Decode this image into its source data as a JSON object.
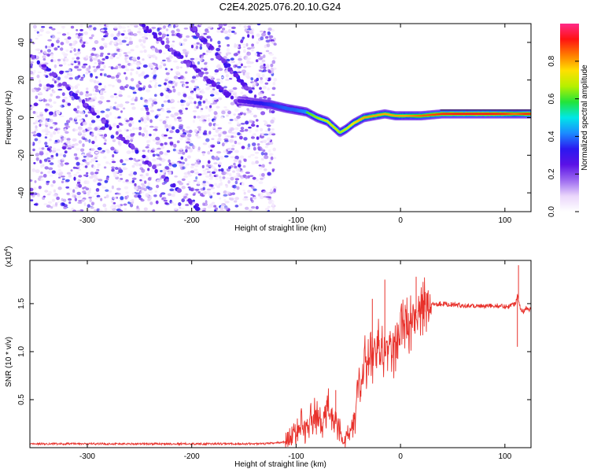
{
  "page": {
    "title": "C2E4.2025.076.20.10.G24"
  },
  "colors": {
    "axis": "#000000",
    "snr_line": "#e8312b",
    "colorbar_stops": [
      "#ffffff",
      "#ead6fb",
      "#9c6af0",
      "#5b12e6",
      "#2b18f0",
      "#1b8bff",
      "#00e7e7",
      "#22e43a",
      "#b6f000",
      "#ffe000",
      "#ff7c00",
      "#ff1212",
      "#ff2a88"
    ]
  },
  "chart_data": [
    {
      "id": "spectrogram",
      "type": "heatmap",
      "title": "",
      "xlabel": "Height of straight line (km)",
      "ylabel": "Frequency (Hz)",
      "xlim": [
        -355,
        125
      ],
      "ylim": [
        -50,
        50
      ],
      "xticks": [
        -300,
        -200,
        -100,
        0,
        100
      ],
      "yticks": [
        -40,
        -20,
        0,
        20,
        40
      ],
      "colorbar": {
        "label": "Normalized spectral amplitude",
        "range": [
          0,
          1
        ],
        "ticks": [
          0.0,
          0.2,
          0.4,
          0.6,
          0.8
        ],
        "colormap": "white-purple-blue-cyan-green-yellow-red"
      },
      "noise_region_x": [
        -355,
        -120
      ],
      "diagonal_tracks": [
        {
          "from": [
            -355,
            34
          ],
          "to": [
            -190,
            -50
          ]
        },
        {
          "from": [
            -250,
            50
          ],
          "to": [
            -150,
            5
          ]
        },
        {
          "from": [
            -200,
            48
          ],
          "to": [
            -140,
            12
          ]
        }
      ],
      "main_trace": {
        "x": [
          -155,
          -140,
          -125,
          -110,
          -100,
          -90,
          -80,
          -70,
          -62,
          -58,
          -52,
          -45,
          -35,
          -25,
          -15,
          -5,
          5,
          20,
          40,
          60,
          80,
          100,
          110,
          120,
          125
        ],
        "freq": [
          9,
          8,
          7,
          5,
          4,
          3,
          0,
          -2,
          -6,
          -8,
          -6,
          -3,
          0,
          1,
          2,
          1,
          1,
          1,
          2,
          2,
          2,
          2,
          2,
          2,
          2
        ],
        "amplitude": [
          0.35,
          0.45,
          0.5,
          0.55,
          0.55,
          0.6,
          0.65,
          0.7,
          0.7,
          0.65,
          0.7,
          0.75,
          0.8,
          0.8,
          0.8,
          0.8,
          0.8,
          0.85,
          0.9,
          0.92,
          0.92,
          0.9,
          0.85,
          0.9,
          0.9
        ]
      }
    },
    {
      "id": "snr",
      "type": "line",
      "title": "",
      "xlabel": "Height of straight line (km)",
      "ylabel": "SNR (10 * v/v)",
      "y_multiplier_label": "(x10",
      "y_multiplier_exp": "4",
      "xlim": [
        -355,
        125
      ],
      "ylim": [
        0,
        1.95
      ],
      "xticks": [
        -300,
        -200,
        -100,
        0,
        100
      ],
      "yticks": [
        0.5,
        1.0,
        1.5
      ],
      "ytick_labels": [
        "0.5",
        "1.0",
        "1.5"
      ],
      "series": [
        {
          "x": [
            -355,
            -300,
            -200,
            -130,
            -110,
            -100,
            -95,
            -90,
            -85,
            -80,
            -75,
            -70,
            -65,
            -60,
            -55,
            -50,
            -45,
            -40,
            -35,
            -30,
            -25,
            -20,
            -15,
            -10,
            -5,
            0,
            5,
            10,
            15,
            20,
            25,
            30,
            40,
            50,
            60,
            70,
            80,
            90,
            100,
            105,
            110,
            112,
            115,
            118,
            120,
            125
          ],
          "y": [
            0.04,
            0.04,
            0.04,
            0.04,
            0.06,
            0.15,
            0.25,
            0.2,
            0.3,
            0.35,
            0.2,
            0.45,
            0.3,
            0.25,
            0.05,
            0.15,
            0.3,
            0.55,
            0.8,
            0.95,
            0.9,
            1.05,
            0.95,
            1.1,
            1.0,
            1.3,
            1.25,
            1.35,
            1.4,
            1.45,
            1.47,
            1.5,
            1.5,
            1.49,
            1.48,
            1.48,
            1.47,
            1.48,
            1.47,
            1.48,
            1.5,
            1.6,
            1.45,
            1.42,
            1.45,
            1.44
          ]
        }
      ],
      "spikes": [
        {
          "x": -62,
          "y": 0.6
        },
        {
          "x": -27,
          "y": 1.55
        },
        {
          "x": -15,
          "y": 1.75
        },
        {
          "x": 15,
          "y": 1.78
        },
        {
          "x": 113,
          "y": 1.9
        },
        {
          "x": 112,
          "y": 1.05
        }
      ]
    }
  ]
}
